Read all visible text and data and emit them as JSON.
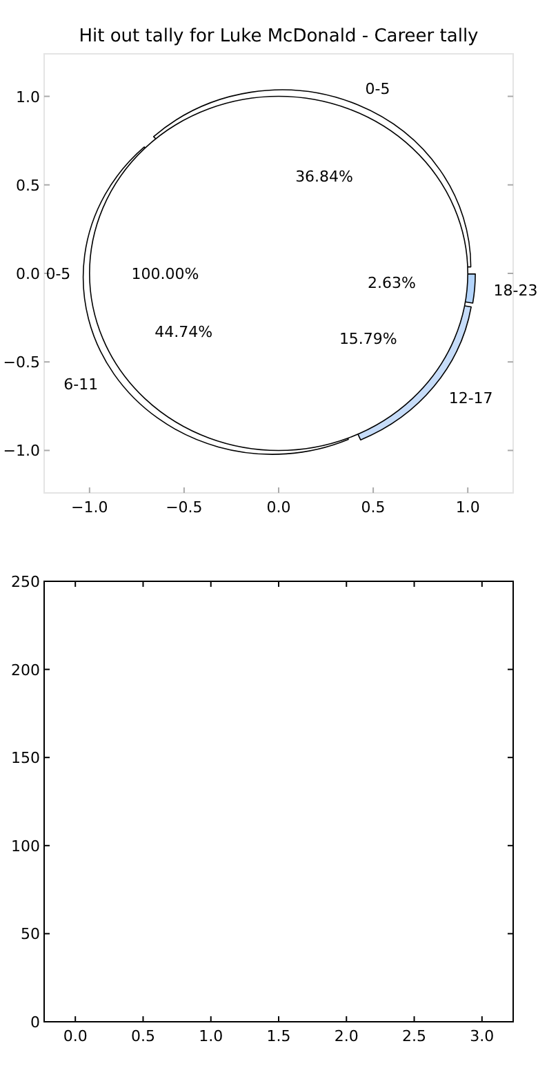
{
  "chart_data": [
    {
      "type": "scatter",
      "title": "Hit out tally for Luke McDonald - Career tally",
      "xlim": [
        -1.24,
        1.24
      ],
      "ylim": [
        -1.24,
        1.24
      ],
      "xticks": [
        {
          "value": -1,
          "label": "−1.0"
        },
        {
          "value": -0.5,
          "label": "−0.5"
        },
        {
          "value": 0,
          "label": "0.0"
        },
        {
          "value": 0.5,
          "label": "0.5"
        },
        {
          "value": 1,
          "label": "1.0"
        }
      ],
      "yticks": [
        {
          "value": -1,
          "label": "−1.0"
        },
        {
          "value": -0.5,
          "label": "−0.5"
        },
        {
          "value": 0,
          "label": "0.0"
        },
        {
          "value": 0.5,
          "label": "0.5"
        },
        {
          "value": 1,
          "label": "1.0"
        }
      ]
    },
    {
      "type": "donut",
      "categories": [
        "0-5",
        "6-11",
        "12-17",
        "18-23"
      ],
      "values": [
        36.84,
        44.74,
        15.79,
        2.63
      ],
      "colors": [
        "#ffffff",
        "#ffffff",
        "#c6dcf9",
        "#b3d4fb"
      ],
      "value_labels": [
        "36.84%",
        "44.74%",
        "15.79%",
        "2.63%"
      ]
    },
    {
      "type": "pie",
      "categories": [
        "0-5"
      ],
      "values": [
        100
      ],
      "colors": [
        "#ffffff"
      ],
      "value_labels": [
        "100.00%"
      ]
    },
    {
      "type": "scatter",
      "xlim": [
        -0.23,
        3.23
      ],
      "ylim": [
        0,
        250
      ],
      "xticks": [
        {
          "value": 0,
          "label": "0.0"
        },
        {
          "value": 0.5,
          "label": "0.5"
        },
        {
          "value": 1,
          "label": "1.0"
        },
        {
          "value": 1.5,
          "label": "1.5"
        },
        {
          "value": 2,
          "label": "2.0"
        },
        {
          "value": 2.5,
          "label": "2.5"
        },
        {
          "value": 3,
          "label": "3.0"
        }
      ],
      "yticks": [
        0,
        50,
        100,
        150,
        200,
        250
      ]
    }
  ]
}
